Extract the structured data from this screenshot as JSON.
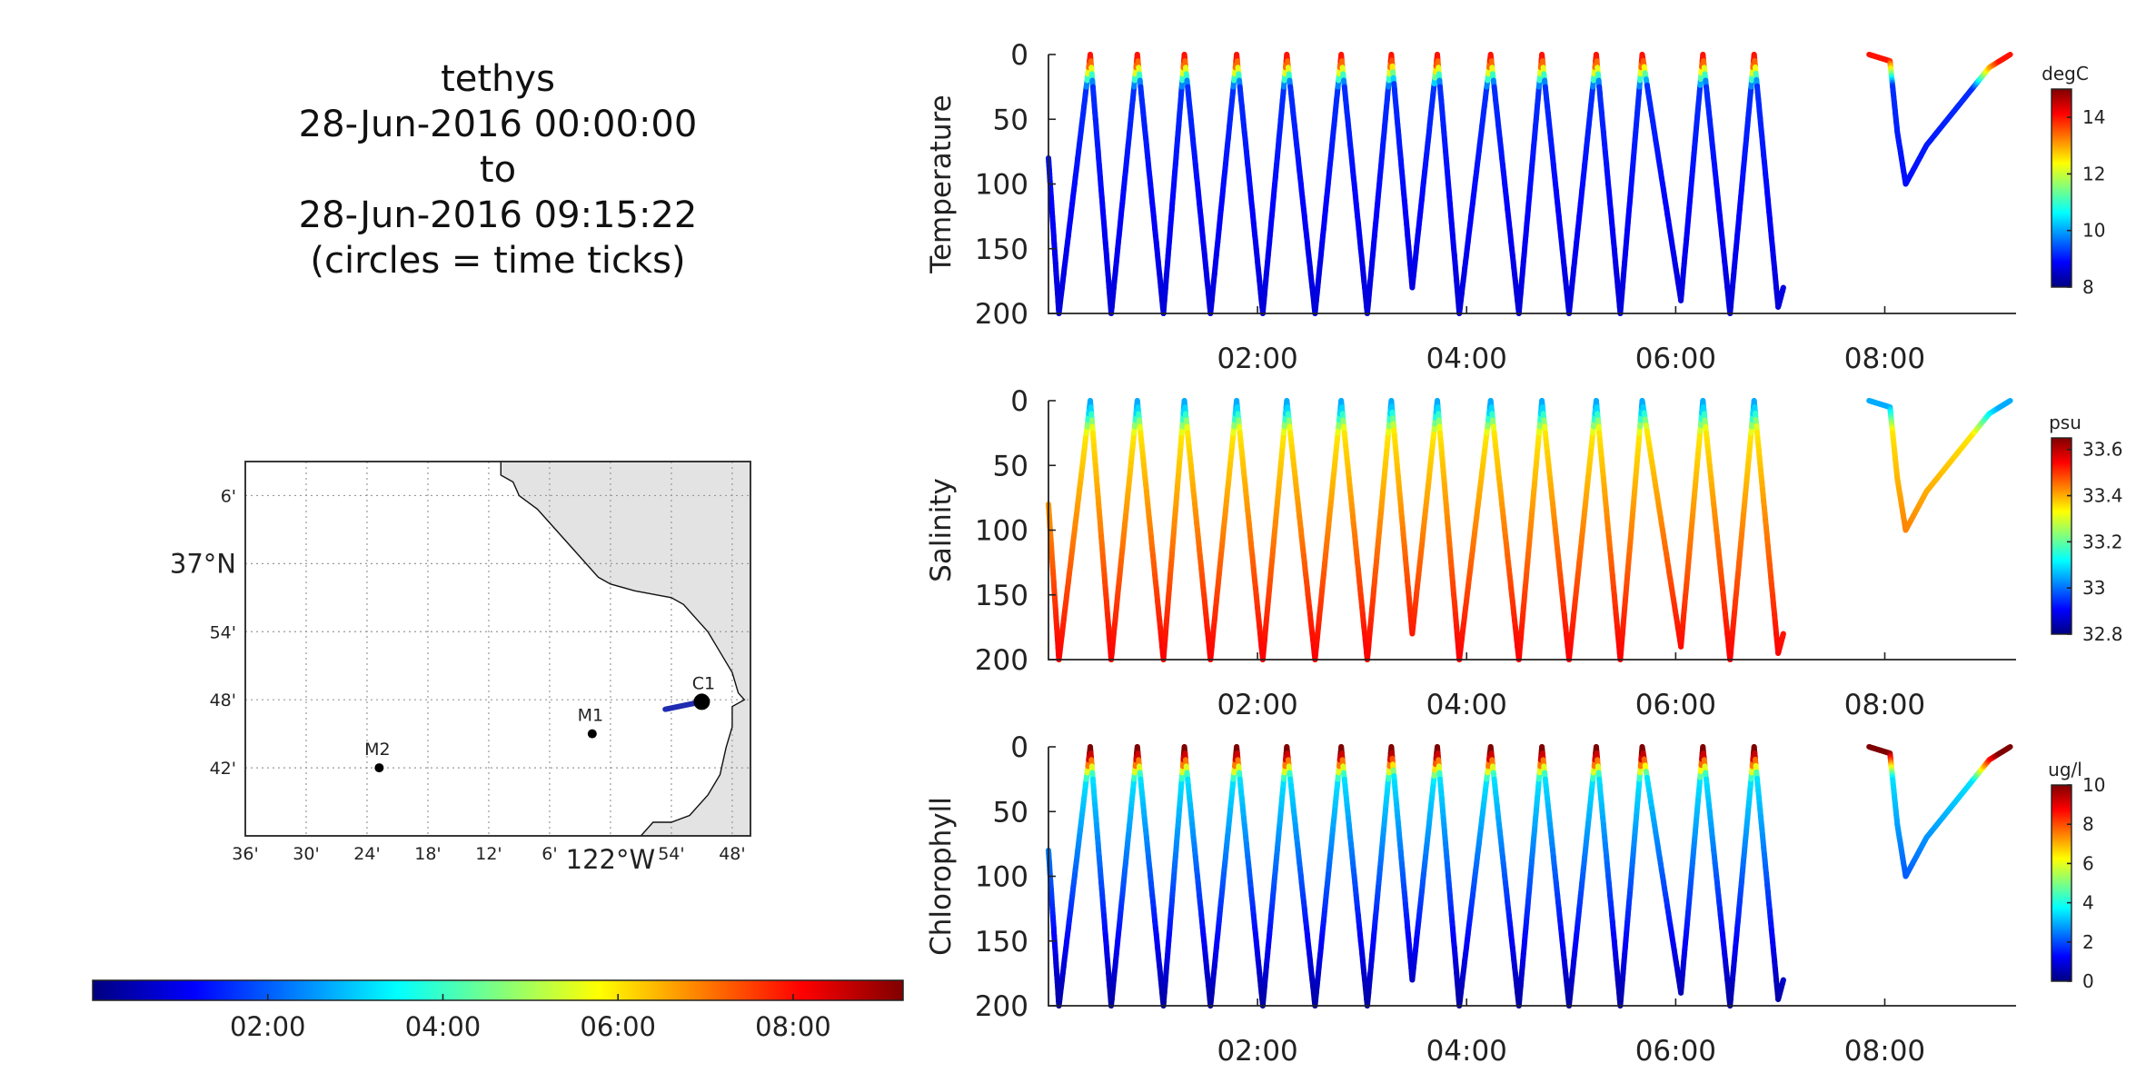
{
  "title": {
    "lines": [
      "tethys",
      "28-Jun-2016 00:00:00",
      "to",
      "28-Jun-2016 09:15:22",
      "(circles = time ticks)"
    ]
  },
  "colors": {
    "jet": [
      "#00007f",
      "#0000ff",
      "#007fff",
      "#00ffff",
      "#7fff7f",
      "#ffff00",
      "#ff7f00",
      "#ff0000",
      "#7f0000"
    ],
    "land": "#e3e3e3",
    "trackline": "#1f2bb0"
  },
  "time_colorbar": {
    "tick_labels": [
      "02:00",
      "04:00",
      "06:00",
      "08:00"
    ],
    "tick_hours": [
      2,
      4,
      6,
      8
    ],
    "range_hours": [
      0,
      9.256
    ]
  },
  "map": {
    "lat_labels": [
      "6'",
      "37°N",
      "54'",
      "48'",
      "42'"
    ],
    "lon_labels": [
      "36'",
      "30'",
      "24'",
      "18'",
      "12'",
      "6'",
      "122°W",
      "54'",
      "48'"
    ],
    "lon_range": [
      -122.6,
      -121.77
    ],
    "lat_range": [
      36.6,
      37.15
    ],
    "grid_lat": [
      37.1,
      37.0,
      36.9,
      36.8,
      36.7
    ],
    "grid_lon": [
      -122.6,
      -122.5,
      -122.4,
      -122.3,
      -122.2,
      -122.1,
      -122.0,
      -121.9,
      -121.8
    ],
    "stations": [
      {
        "name": "M2",
        "lon": -122.38,
        "lat": 36.7
      },
      {
        "name": "M1",
        "lon": -122.03,
        "lat": 36.75
      },
      {
        "name": "C1",
        "lon": -121.85,
        "lat": 36.797
      }
    ],
    "track": {
      "start": {
        "lon": -121.91,
        "lat": 36.786
      },
      "end": {
        "lon": -121.85,
        "lat": 36.797
      }
    },
    "coast": [
      [
        -122.18,
        37.15
      ],
      [
        -122.18,
        37.13
      ],
      [
        -122.16,
        37.12
      ],
      [
        -122.15,
        37.1
      ],
      [
        -122.12,
        37.08
      ],
      [
        -122.1,
        37.06
      ],
      [
        -122.08,
        37.04
      ],
      [
        -122.06,
        37.02
      ],
      [
        -122.04,
        37.0
      ],
      [
        -122.02,
        36.98
      ],
      [
        -122.0,
        36.97
      ],
      [
        -121.96,
        36.96
      ],
      [
        -121.93,
        36.955
      ],
      [
        -121.9,
        36.95
      ],
      [
        -121.88,
        36.94
      ],
      [
        -121.86,
        36.92
      ],
      [
        -121.84,
        36.9
      ],
      [
        -121.82,
        36.87
      ],
      [
        -121.8,
        36.84
      ],
      [
        -121.79,
        36.81
      ],
      [
        -121.78,
        36.8
      ],
      [
        -121.8,
        36.79
      ],
      [
        -121.8,
        36.76
      ],
      [
        -121.81,
        36.73
      ],
      [
        -121.82,
        36.69
      ],
      [
        -121.84,
        36.66
      ],
      [
        -121.87,
        36.63
      ],
      [
        -121.9,
        36.62
      ],
      [
        -121.93,
        36.62
      ],
      [
        -121.95,
        36.6
      ]
    ]
  },
  "chart_data": [
    {
      "type": "scatter",
      "ylabel": "Temperature",
      "units": "degC",
      "clim": [
        8,
        15
      ],
      "cbar_ticks": [
        8,
        10,
        12,
        14
      ],
      "cbar_tick_labels": [
        "8",
        "10",
        "12",
        "14"
      ],
      "xlim": [
        0,
        9.256
      ],
      "ylim": [
        200,
        0
      ],
      "x_tick_hours": [
        2,
        4,
        6,
        8
      ],
      "x_tick_labels": [
        "02:00",
        "04:00",
        "06:00",
        "08:00"
      ],
      "y_ticks": [
        0,
        50,
        100,
        150,
        200
      ],
      "y_tick_labels": [
        "0",
        "50",
        "100",
        "150",
        "200"
      ],
      "profile": {
        "shallow_value": 14,
        "mid_value": 9.2,
        "deep_value": 8.6,
        "thermocline_depth": 25,
        "turn_times": [
          0.0,
          0.1,
          0.4,
          0.6,
          0.85,
          1.1,
          1.3,
          1.55,
          1.8,
          2.05,
          2.28,
          2.55,
          2.8,
          3.05,
          3.28,
          3.48,
          3.72,
          3.93,
          4.23,
          4.5,
          4.72,
          4.98,
          5.24,
          5.47,
          5.68,
          6.05,
          6.26,
          6.52,
          6.75,
          6.98,
          7.03
        ],
        "turn_depths": [
          80,
          200,
          0,
          200,
          0,
          200,
          0,
          200,
          0,
          200,
          0,
          200,
          0,
          200,
          0,
          180,
          0,
          200,
          0,
          200,
          0,
          200,
          0,
          200,
          0,
          190,
          0,
          200,
          0,
          195,
          180
        ],
        "late_segment": {
          "times": [
            7.85,
            8.05,
            8.12,
            8.2,
            8.4,
            8.7,
            9.0,
            9.2
          ],
          "depths": [
            0,
            5,
            60,
            100,
            70,
            40,
            10,
            0
          ]
        }
      }
    },
    {
      "type": "scatter",
      "ylabel": "Salinity",
      "units": "psu",
      "clim": [
        32.8,
        33.65
      ],
      "cbar_ticks": [
        32.8,
        33.0,
        33.2,
        33.4,
        33.6
      ],
      "cbar_tick_labels": [
        "32.8",
        "33",
        "33.2",
        "33.4",
        "33.6"
      ],
      "xlim": [
        0,
        9.256
      ],
      "ylim": [
        200,
        0
      ],
      "x_tick_hours": [
        2,
        4,
        6,
        8
      ],
      "x_tick_labels": [
        "02:00",
        "04:00",
        "06:00",
        "08:00"
      ],
      "y_ticks": [
        0,
        50,
        100,
        150,
        200
      ],
      "y_tick_labels": [
        "0",
        "50",
        "100",
        "150",
        "200"
      ],
      "profile": {
        "shallow_value": 33.05,
        "mid_value": 33.35,
        "deep_value": 33.55,
        "thermocline_depth": 25
      }
    },
    {
      "type": "scatter",
      "ylabel": "Chlorophyll",
      "units": "ug/l",
      "clim": [
        0,
        10
      ],
      "cbar_ticks": [
        0,
        2,
        4,
        6,
        8,
        10
      ],
      "cbar_tick_labels": [
        "0",
        "2",
        "4",
        "6",
        "8",
        "10"
      ],
      "xlim": [
        0,
        9.256
      ],
      "ylim": [
        200,
        0
      ],
      "x_tick_hours": [
        2,
        4,
        6,
        8
      ],
      "x_tick_labels": [
        "02:00",
        "04:00",
        "06:00",
        "08:00"
      ],
      "y_ticks": [
        0,
        50,
        100,
        150,
        200
      ],
      "y_tick_labels": [
        "0",
        "50",
        "100",
        "150",
        "200"
      ],
      "profile": {
        "shallow_value": 10,
        "mid_value": 3.5,
        "deep_value": 0.3,
        "thermocline_depth": 25
      }
    }
  ]
}
